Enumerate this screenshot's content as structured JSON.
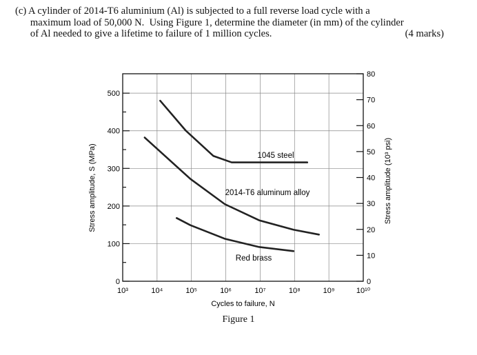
{
  "question": {
    "lines": [
      "(c) A cylinder of 2014-T6 aluminium (Al) is subjected to a full reverse load cycle with a",
      "      maximum load of 50,000 N.  Using Figure 1, determine the diameter (in mm) of the cylinder",
      "      of Al needed to give a lifetime to failure of 1 million cycles."
    ],
    "marks": "(4 marks)"
  },
  "figure_caption": "Figure 1",
  "chart_data": {
    "type": "line",
    "xlabel": "Cycles to failure, N",
    "ylabel": "Stress amplitude, S (MPa)",
    "ylabel_right": "Stress amplitude (10³ psi)",
    "x_scale": "log",
    "xlim": [
      1000,
      10000000000
    ],
    "x_tick_labels": [
      "10³",
      "10⁴",
      "10⁵",
      "10⁶",
      "10⁷",
      "10⁸",
      "10⁹",
      "10¹⁰"
    ],
    "ylim": [
      0,
      551.6
    ],
    "y_ticks": [
      0,
      100,
      200,
      300,
      400,
      500
    ],
    "y_right_ticks": [
      0,
      10,
      20,
      30,
      40,
      50,
      60,
      70,
      80
    ],
    "grid": true,
    "series": [
      {
        "name": "1045 steel",
        "x_log10": [
          4.09,
          4.84,
          5.64,
          6.17,
          8.37
        ],
        "y": [
          480,
          400,
          333,
          316,
          316
        ]
      },
      {
        "name": "2014-T6 aluminum alloy",
        "x_log10": [
          3.64,
          4.97,
          5.97,
          6.97,
          7.97,
          8.71
        ],
        "y": [
          382,
          272,
          205,
          162,
          137,
          124
        ]
      },
      {
        "name": "Red brass",
        "x_log10": [
          4.57,
          4.97,
          5.97,
          6.97,
          7.97
        ],
        "y": [
          168,
          149,
          113,
          91,
          80
        ]
      }
    ]
  }
}
